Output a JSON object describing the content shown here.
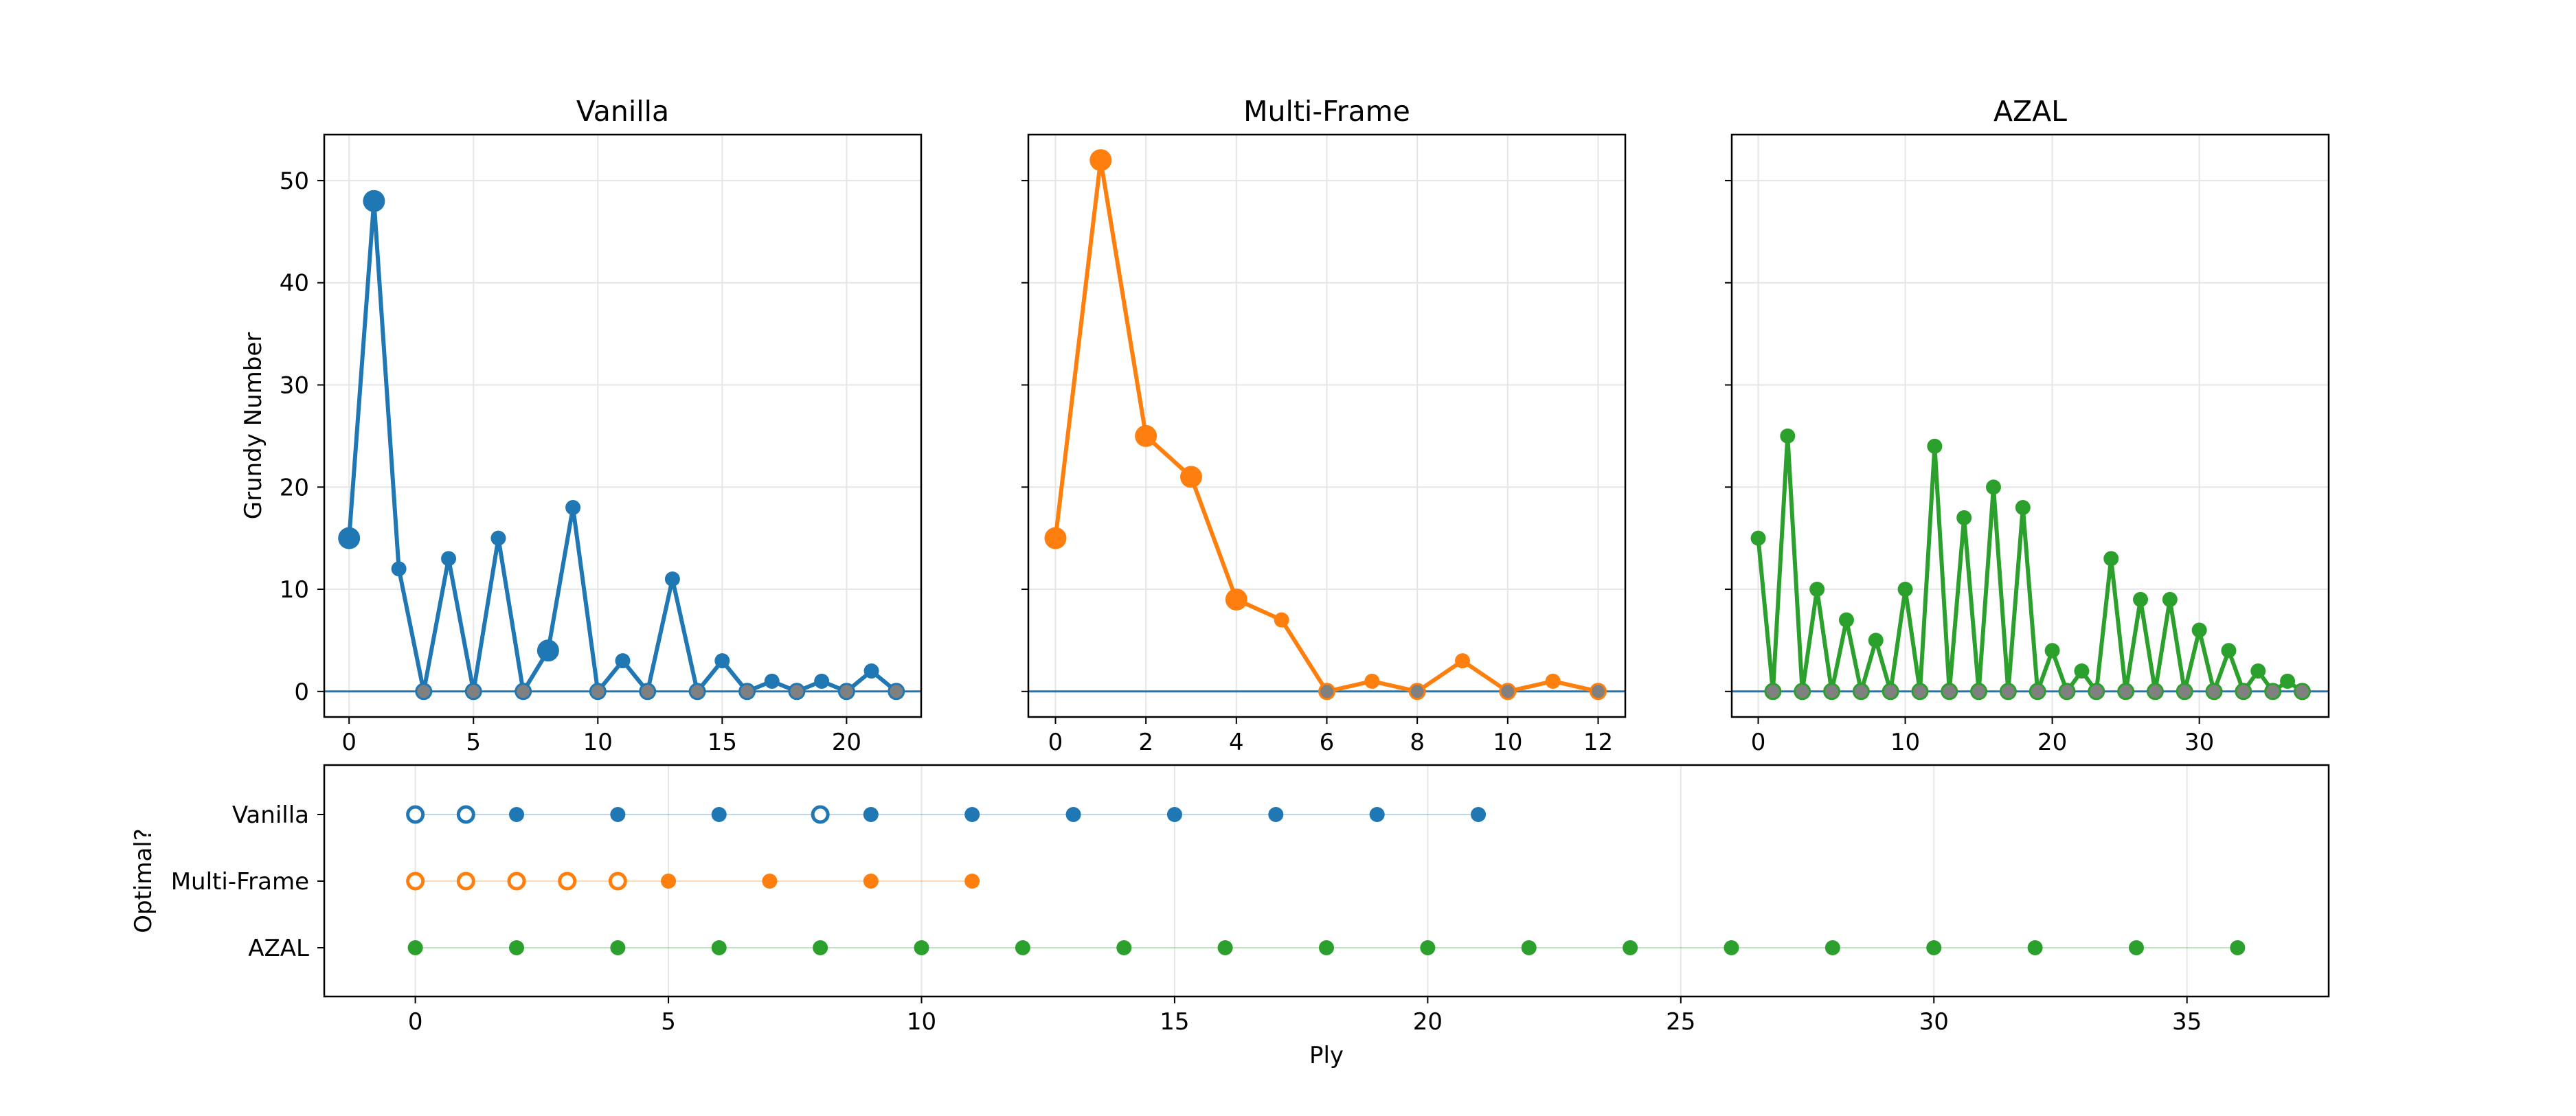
{
  "colors": {
    "vanilla": "#1f77b4",
    "multi_frame": "#ff7f0e",
    "azal": "#2ca02c",
    "grid": "#e6e6e6",
    "zero_line": "#1f77b4"
  },
  "chart_data": [
    {
      "type": "line",
      "title": "Vanilla",
      "xlabel": "",
      "ylabel": "Grundy Number",
      "xlim": [
        -1,
        23
      ],
      "ylim": [
        -2.5,
        54.5
      ],
      "xticks": [
        0,
        5,
        10,
        15,
        20
      ],
      "yticks": [
        0,
        10,
        20,
        30,
        40,
        50
      ],
      "grid": true,
      "x": [
        0,
        1,
        2,
        3,
        4,
        5,
        6,
        7,
        8,
        9,
        10,
        11,
        12,
        13,
        14,
        15,
        16,
        17,
        18,
        19,
        20,
        21,
        22
      ],
      "y": [
        15,
        48,
        12,
        0,
        13,
        0,
        15,
        0,
        4,
        18,
        0,
        3,
        0,
        11,
        0,
        3,
        0,
        1,
        0,
        1,
        0,
        2,
        0
      ],
      "emphasized_points_x": [
        0,
        1,
        8
      ]
    },
    {
      "type": "line",
      "title": "Multi-Frame",
      "xlabel": "",
      "ylabel": "",
      "xlim": [
        -0.6,
        12.6
      ],
      "ylim": [
        -2.5,
        54.5
      ],
      "xticks": [
        0,
        2,
        4,
        6,
        8,
        10,
        12
      ],
      "yticks": [
        0,
        10,
        20,
        30,
        40,
        50
      ],
      "grid": true,
      "x": [
        0,
        1,
        2,
        3,
        4,
        5,
        6,
        7,
        8,
        9,
        10,
        11,
        12
      ],
      "y": [
        15,
        52,
        25,
        21,
        9,
        7,
        0,
        1,
        0,
        3,
        0,
        1,
        0
      ],
      "emphasized_points_x": [
        0,
        1,
        2,
        3,
        4
      ]
    },
    {
      "type": "line",
      "title": "AZAL",
      "xlabel": "",
      "ylabel": "",
      "xlim": [
        -1.8,
        38.8
      ],
      "ylim": [
        -2.5,
        54.5
      ],
      "xticks": [
        0,
        10,
        20,
        30
      ],
      "yticks": [
        0,
        10,
        20,
        30,
        40,
        50
      ],
      "grid": true,
      "x": [
        0,
        1,
        2,
        3,
        4,
        5,
        6,
        7,
        8,
        9,
        10,
        11,
        12,
        13,
        14,
        15,
        16,
        17,
        18,
        19,
        20,
        21,
        22,
        23,
        24,
        25,
        26,
        27,
        28,
        29,
        30,
        31,
        32,
        33,
        34,
        35,
        36,
        37
      ],
      "y": [
        15,
        0,
        25,
        0,
        10,
        0,
        7,
        0,
        5,
        0,
        10,
        0,
        24,
        0,
        17,
        0,
        20,
        0,
        18,
        0,
        4,
        0,
        2,
        0,
        13,
        0,
        9,
        0,
        9,
        0,
        6,
        0,
        4,
        0,
        2,
        0,
        1,
        0
      ],
      "emphasized_points_x": []
    },
    {
      "type": "scatter",
      "title": "",
      "xlabel": "Ply",
      "ylabel": "Optimal?",
      "xlim": [
        -1.8,
        37.8
      ],
      "xticks": [
        0,
        5,
        10,
        15,
        20,
        25,
        30,
        35
      ],
      "grid": true,
      "categories": [
        "Vanilla",
        "Multi-Frame",
        "AZAL"
      ],
      "series": [
        {
          "name": "Vanilla",
          "x": [
            0,
            1,
            2,
            4,
            6,
            8,
            9,
            11,
            13,
            15,
            17,
            19,
            21
          ],
          "optimal": [
            false,
            false,
            true,
            true,
            true,
            false,
            true,
            true,
            true,
            true,
            true,
            true,
            true
          ]
        },
        {
          "name": "Multi-Frame",
          "x": [
            0,
            1,
            2,
            3,
            4,
            5,
            7,
            9,
            11
          ],
          "optimal": [
            false,
            false,
            false,
            false,
            false,
            true,
            true,
            true,
            true
          ]
        },
        {
          "name": "AZAL",
          "x": [
            0,
            2,
            4,
            6,
            8,
            10,
            12,
            14,
            16,
            18,
            20,
            22,
            24,
            26,
            28,
            30,
            32,
            34,
            36
          ],
          "optimal": [
            true,
            true,
            true,
            true,
            true,
            true,
            true,
            true,
            true,
            true,
            true,
            true,
            true,
            true,
            true,
            true,
            true,
            true,
            true
          ]
        }
      ]
    }
  ]
}
